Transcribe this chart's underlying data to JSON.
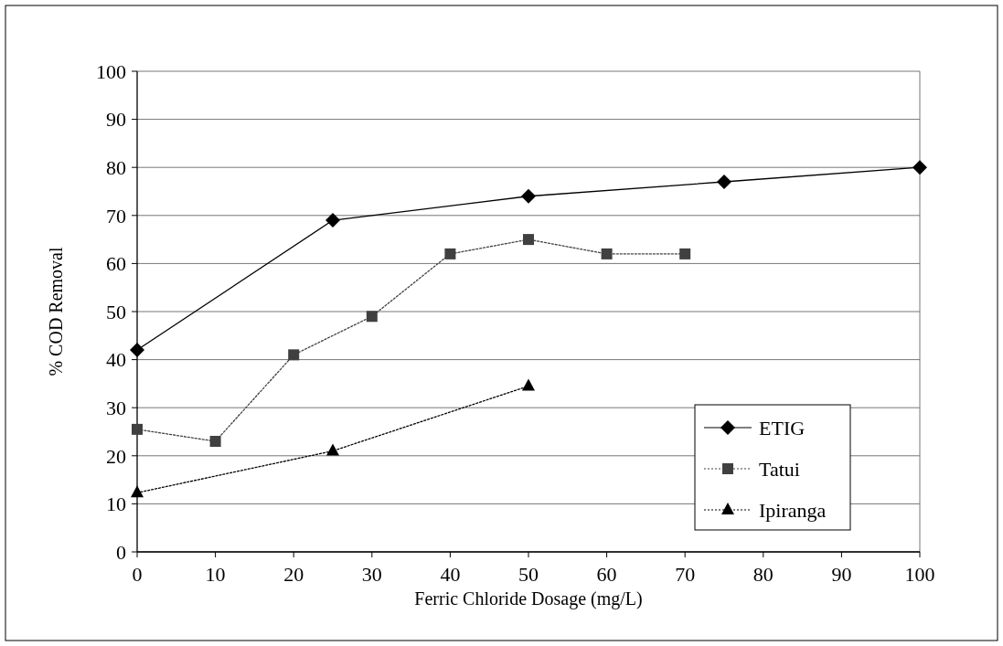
{
  "chart_data": {
    "type": "line",
    "xlabel": "Ferric Chloride Dosage (mg/L)",
    "ylabel": "% COD Removal",
    "xlim": [
      0,
      100
    ],
    "xticks": [
      0,
      10,
      20,
      30,
      40,
      50,
      60,
      70,
      80,
      90,
      100
    ],
    "ylim": [
      0,
      100
    ],
    "yticks": [
      0,
      10,
      20,
      30,
      40,
      50,
      60,
      70,
      80,
      90,
      100
    ],
    "grid": "y",
    "legend": "bottom right",
    "series": [
      {
        "name": "ETIG",
        "color": "#000000",
        "marker": "diamond",
        "line_style": "solid",
        "x": [
          0,
          25,
          50,
          75,
          100
        ],
        "values": [
          42,
          69,
          74,
          77,
          80
        ]
      },
      {
        "name": "Tatui",
        "color": "#404040",
        "marker": "square",
        "line_style": "dotted",
        "x": [
          0,
          10,
          20,
          30,
          40,
          50,
          60,
          70
        ],
        "values": [
          25.5,
          23,
          41,
          49,
          62,
          65,
          62,
          62
        ]
      },
      {
        "name": "Ipiranga",
        "color": "#000000",
        "marker": "triangle",
        "line_style": "dotted",
        "x": [
          0,
          25,
          50
        ],
        "values": [
          12.3,
          21,
          34.5
        ]
      }
    ]
  }
}
